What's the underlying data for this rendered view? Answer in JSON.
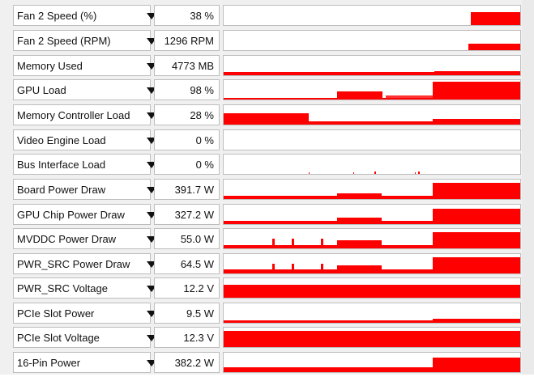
{
  "graph_color": "#ff0000",
  "sensors": [
    {
      "label": "Fan 2 Speed (%)",
      "value": "38 %"
    },
    {
      "label": "Fan 2 Speed (RPM)",
      "value": "1296 RPM"
    },
    {
      "label": "Memory Used",
      "value": "4773 MB"
    },
    {
      "label": "GPU Load",
      "value": "98 %"
    },
    {
      "label": "Memory Controller Load",
      "value": "28 %"
    },
    {
      "label": "Video Engine Load",
      "value": "0 %"
    },
    {
      "label": "Bus Interface Load",
      "value": "0 %"
    },
    {
      "label": "Board Power Draw",
      "value": "391.7 W"
    },
    {
      "label": "GPU Chip Power Draw",
      "value": "327.2 W"
    },
    {
      "label": "MVDDC Power Draw",
      "value": "55.0 W"
    },
    {
      "label": "PWR_SRC Power Draw",
      "value": "64.5 W"
    },
    {
      "label": "PWR_SRC Voltage",
      "value": "12.2 V"
    },
    {
      "label": "PCIe Slot Power",
      "value": "9.5 W"
    },
    {
      "label": "PCIe Slot Voltage",
      "value": "12.3 V"
    },
    {
      "label": "16-Pin Power",
      "value": "382.2 W"
    }
  ]
}
